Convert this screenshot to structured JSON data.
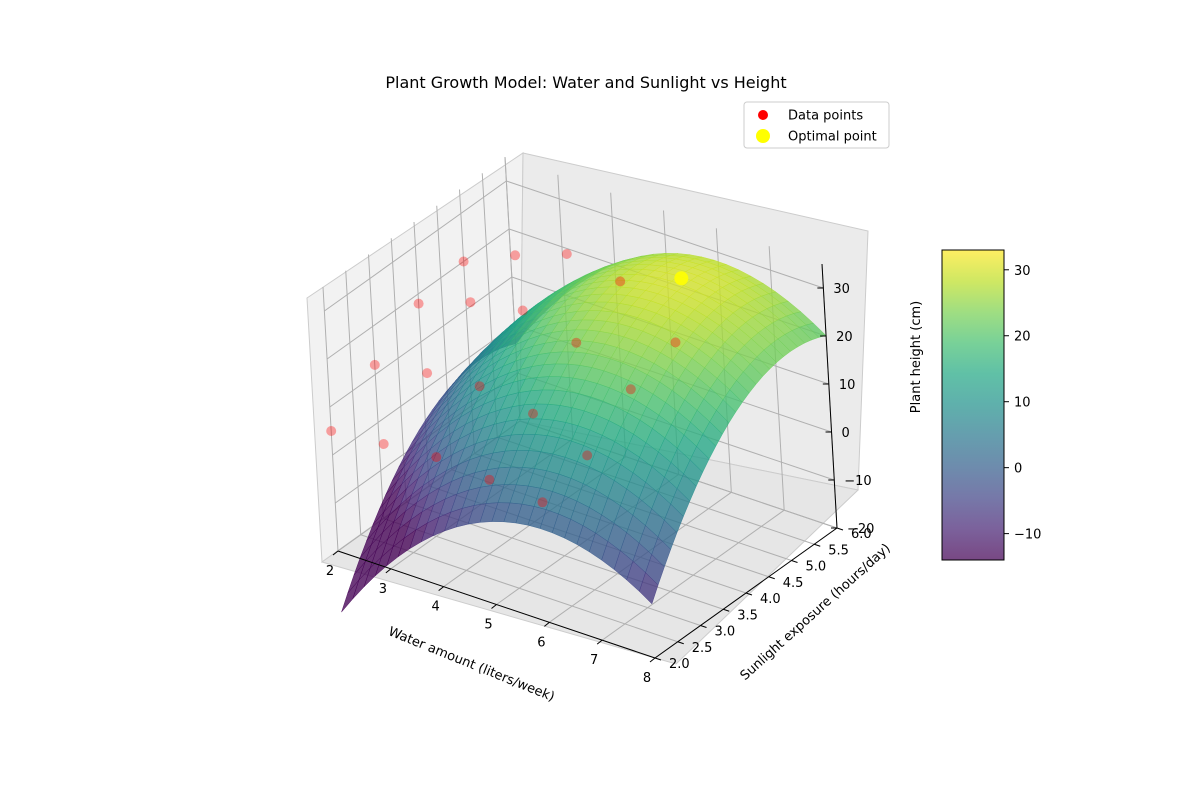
{
  "chart_data": {
    "type": "surface3d",
    "title": "Plant Growth Model: Water and Sunlight vs Height",
    "xlabel": "Water amount (liters/week)",
    "ylabel": "Sunlight exposure (hours/day)",
    "zlabel": "Plant height (cm)",
    "xlim": [
      2,
      8
    ],
    "ylim": [
      2,
      6
    ],
    "zlim": [
      -20,
      35
    ],
    "xticks": [
      "2",
      "3",
      "4",
      "5",
      "6",
      "7",
      "8"
    ],
    "yticks": [
      "2.0",
      "2.5",
      "3.0",
      "3.5",
      "4.0",
      "4.5",
      "5.0",
      "5.5",
      "6.0"
    ],
    "zticks": [
      "-20",
      "-10",
      "0",
      "10",
      "20",
      "30"
    ],
    "surface": {
      "model": "z = 30 - 2*(x-6)^2 - 3*(y-5.2)^2",
      "colormap": "viridis",
      "alpha": 0.7
    },
    "scatter": [
      {
        "x": 2,
        "y": 2,
        "z": 5
      },
      {
        "x": 3,
        "y": 2,
        "z": 6
      },
      {
        "x": 4,
        "y": 2,
        "z": 7
      },
      {
        "x": 5,
        "y": 2,
        "z": 6
      },
      {
        "x": 6,
        "y": 2,
        "z": 5
      },
      {
        "x": 2,
        "y": 3,
        "z": 12
      },
      {
        "x": 3,
        "y": 3,
        "z": 14
      },
      {
        "x": 4,
        "y": 3,
        "z": 15
      },
      {
        "x": 5,
        "y": 3,
        "z": 13
      },
      {
        "x": 6,
        "y": 3,
        "z": 8
      },
      {
        "x": 2,
        "y": 4,
        "z": 18
      },
      {
        "x": 3,
        "y": 4,
        "z": 22
      },
      {
        "x": 4,
        "y": 4,
        "z": 24
      },
      {
        "x": 5,
        "y": 4,
        "z": 21
      },
      {
        "x": 6,
        "y": 4,
        "z": 15
      },
      {
        "x": 2,
        "y": 5,
        "z": 20
      },
      {
        "x": 3,
        "y": 5,
        "z": 25
      },
      {
        "x": 4,
        "y": 5,
        "z": 29
      },
      {
        "x": 5,
        "y": 5,
        "z": 27
      },
      {
        "x": 6,
        "y": 5,
        "z": 18
      }
    ],
    "optimal_point": {
      "x": 6,
      "y": 5.2,
      "z": 30
    },
    "legend": {
      "position": "top-right",
      "entries": [
        {
          "label": "Data points",
          "color": "#ff0000"
        },
        {
          "label": "Optimal point",
          "color": "#ffff00"
        }
      ]
    },
    "colorbar": {
      "ticks": [
        "30",
        "20",
        "10",
        "0",
        "−10"
      ],
      "range": [
        -14,
        33
      ]
    },
    "grid": true
  }
}
